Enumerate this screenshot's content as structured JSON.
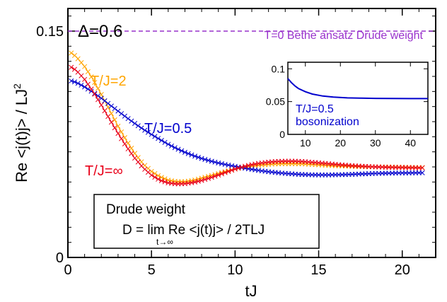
{
  "chart_data": {
    "main": {
      "type": "scatter",
      "xlabel": "tJ",
      "ylabel_main": "Re <j(t)j> / LJ",
      "ylabel_sup": "2",
      "xlim": [
        0,
        22
      ],
      "ylim": [
        0,
        0.165
      ],
      "xticks": [
        "0",
        "5",
        "10",
        "15",
        "20"
      ],
      "yticks": [
        "0",
        "0.15"
      ],
      "ytick_values": [
        0,
        0.15
      ],
      "xtick_values": [
        0,
        5,
        10,
        15,
        20
      ],
      "corner_label": "Δ=0.6",
      "reference_line": {
        "label": "T=0 Bethe ansatz Drude weight",
        "y": 0.15,
        "color": "#9932CC"
      },
      "marker": "x",
      "series": [
        {
          "name": "T/J=2",
          "color": "#FFA500",
          "points": [
            [
              0.2,
              0.1355
            ],
            [
              0.5,
              0.133
            ],
            [
              1,
              0.1265
            ],
            [
              1.5,
              0.118
            ],
            [
              2,
              0.108
            ],
            [
              2.5,
              0.0975
            ],
            [
              3,
              0.087
            ],
            [
              3.5,
              0.0775
            ],
            [
              4,
              0.069
            ],
            [
              4.5,
              0.062
            ],
            [
              5,
              0.057
            ],
            [
              5.5,
              0.0535
            ],
            [
              6,
              0.0512
            ],
            [
              6.5,
              0.0502
            ],
            [
              7,
              0.0502
            ],
            [
              7.5,
              0.051
            ],
            [
              8,
              0.0525
            ],
            [
              8.5,
              0.054
            ],
            [
              9,
              0.0556
            ],
            [
              9.5,
              0.0572
            ],
            [
              10,
              0.0586
            ],
            [
              10.5,
              0.0597
            ],
            [
              11,
              0.0606
            ],
            [
              11.5,
              0.0612
            ],
            [
              12,
              0.0617
            ],
            [
              12.5,
              0.062
            ],
            [
              13,
              0.0621
            ],
            [
              13.5,
              0.0621
            ],
            [
              14,
              0.062
            ],
            [
              14.5,
              0.0617
            ],
            [
              15,
              0.0614
            ],
            [
              15.5,
              0.0611
            ],
            [
              16,
              0.0608
            ],
            [
              16.5,
              0.0606
            ],
            [
              17,
              0.0604
            ],
            [
              17.5,
              0.0602
            ],
            [
              18,
              0.0601
            ],
            [
              18.5,
              0.06
            ],
            [
              19,
              0.06
            ],
            [
              19.5,
              0.0599
            ],
            [
              20,
              0.0598
            ],
            [
              20.5,
              0.0597
            ],
            [
              21,
              0.0596
            ],
            [
              21.2,
              0.0596
            ]
          ]
        },
        {
          "name": "T/J=0.5",
          "color": "#0000CD",
          "points": [
            [
              0.2,
              0.117
            ],
            [
              0.5,
              0.116
            ],
            [
              1,
              0.113
            ],
            [
              1.5,
              0.1095
            ],
            [
              2,
              0.1055
            ],
            [
              2.5,
              0.1012
            ],
            [
              3,
              0.097
            ],
            [
              3.5,
              0.0928
            ],
            [
              4,
              0.0888
            ],
            [
              4.5,
              0.085
            ],
            [
              5,
              0.0815
            ],
            [
              5.5,
              0.0782
            ],
            [
              6,
              0.075
            ],
            [
              6.5,
              0.0722
            ],
            [
              7,
              0.0697
            ],
            [
              7.5,
              0.0675
            ],
            [
              8,
              0.0656
            ],
            [
              8.5,
              0.064
            ],
            [
              9,
              0.0626
            ],
            [
              9.5,
              0.0614
            ],
            [
              10,
              0.0603
            ],
            [
              10.5,
              0.0593
            ],
            [
              11,
              0.0584
            ],
            [
              11.5,
              0.0575
            ],
            [
              12,
              0.0568
            ],
            [
              12.5,
              0.0562
            ],
            [
              13,
              0.0557
            ],
            [
              13.5,
              0.0553
            ],
            [
              14,
              0.055
            ],
            [
              14.5,
              0.0548
            ],
            [
              15,
              0.0547
            ],
            [
              15.5,
              0.0547
            ],
            [
              16,
              0.0548
            ],
            [
              16.5,
              0.0549
            ],
            [
              17,
              0.0551
            ],
            [
              17.5,
              0.0553
            ],
            [
              18,
              0.0555
            ],
            [
              18.5,
              0.0557
            ],
            [
              19,
              0.0558
            ],
            [
              19.5,
              0.0559
            ],
            [
              20,
              0.056
            ],
            [
              20.5,
              0.056
            ],
            [
              21,
              0.0561
            ],
            [
              21.2,
              0.0561
            ]
          ]
        },
        {
          "name": "T/J=∞",
          "color": "#E8001A",
          "points": [
            [
              0.2,
              0.126
            ],
            [
              0.5,
              0.124
            ],
            [
              1,
              0.118
            ],
            [
              1.5,
              0.11
            ],
            [
              2,
              0.101
            ],
            [
              2.5,
              0.0915
            ],
            [
              3,
              0.0822
            ],
            [
              3.5,
              0.0735
            ],
            [
              4,
              0.0658
            ],
            [
              4.5,
              0.0594
            ],
            [
              5,
              0.0545
            ],
            [
              5.5,
              0.0512
            ],
            [
              6,
              0.0494
            ],
            [
              6.5,
              0.0487
            ],
            [
              7,
              0.0489
            ],
            [
              7.5,
              0.0497
            ],
            [
              8,
              0.051
            ],
            [
              8.5,
              0.0527
            ],
            [
              9,
              0.0546
            ],
            [
              9.5,
              0.0566
            ],
            [
              10,
              0.0586
            ],
            [
              10.5,
              0.0602
            ],
            [
              11,
              0.0615
            ],
            [
              11.5,
              0.0625
            ],
            [
              12,
              0.0632
            ],
            [
              12.5,
              0.0636
            ],
            [
              13,
              0.0638
            ],
            [
              13.5,
              0.0638
            ],
            [
              14,
              0.0636
            ],
            [
              14.5,
              0.0632
            ],
            [
              15,
              0.0627
            ],
            [
              15.5,
              0.0622
            ],
            [
              16,
              0.0617
            ],
            [
              16.5,
              0.0612
            ],
            [
              17,
              0.0608
            ],
            [
              17.5,
              0.0605
            ],
            [
              18,
              0.0602
            ],
            [
              18.5,
              0.06
            ],
            [
              19,
              0.0598
            ],
            [
              19.5,
              0.0597
            ],
            [
              20,
              0.0596
            ],
            [
              20.5,
              0.0595
            ],
            [
              21,
              0.0594
            ],
            [
              21.2,
              0.0594
            ]
          ]
        }
      ],
      "box": {
        "title": "Drude weight",
        "formula_left": "D = lim Re <j(t)j> / 2TLJ",
        "limit_sub": "t→∞"
      }
    },
    "inset": {
      "type": "line",
      "label_line1": "T/J=0.5",
      "label_line2": "bosonization",
      "color": "#0000CD",
      "xlim": [
        5,
        45
      ],
      "ylim": [
        0,
        0.11
      ],
      "xticks": [
        "10",
        "20",
        "30",
        "40"
      ],
      "xtick_values": [
        10,
        20,
        30,
        40
      ],
      "yticks": [
        "0",
        "0.05",
        "0.1"
      ],
      "ytick_values": [
        0,
        0.05,
        0.1
      ],
      "points": [
        [
          5,
          0.085
        ],
        [
          6,
          0.079
        ],
        [
          7,
          0.074
        ],
        [
          8,
          0.07
        ],
        [
          10,
          0.065
        ],
        [
          12,
          0.0615
        ],
        [
          15,
          0.0585
        ],
        [
          18,
          0.0568
        ],
        [
          22,
          0.0557
        ],
        [
          26,
          0.0552
        ],
        [
          30,
          0.0549
        ],
        [
          35,
          0.0547
        ],
        [
          40,
          0.0546
        ],
        [
          45,
          0.0546
        ]
      ]
    }
  }
}
